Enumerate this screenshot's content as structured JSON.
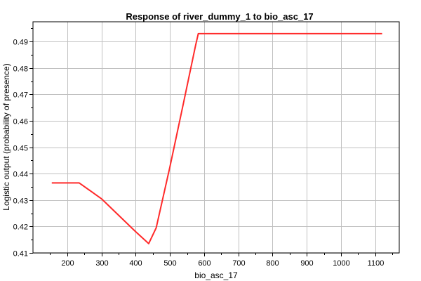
{
  "chart_data": {
    "type": "line",
    "title": "Response of river_dummy_1 to bio_asc_17",
    "xlabel": "bio_asc_17",
    "ylabel": "Logistic output (probability of presence)",
    "xlim": [
      100,
      1170
    ],
    "ylim": [
      0.41,
      0.4975
    ],
    "xticks": [
      200,
      300,
      400,
      500,
      600,
      700,
      800,
      900,
      1000,
      1100
    ],
    "yticks": [
      0.41,
      0.42,
      0.43,
      0.44,
      0.45,
      0.46,
      0.47,
      0.48,
      0.49
    ],
    "ytick_labels": [
      "0.41",
      "0.42",
      "0.43",
      "0.44",
      "0.45",
      "0.46",
      "0.47",
      "0.48",
      "0.49"
    ],
    "grid": true,
    "line_color": "#ff2a2a",
    "series": [
      {
        "x": [
          155,
          235,
          300,
          400,
          438,
          460,
          500,
          540,
          575,
          583,
          1120
        ],
        "y": [
          0.4365,
          0.4365,
          0.4305,
          0.418,
          0.4135,
          0.4195,
          0.4425,
          0.467,
          0.4885,
          0.493,
          0.493
        ]
      }
    ]
  }
}
